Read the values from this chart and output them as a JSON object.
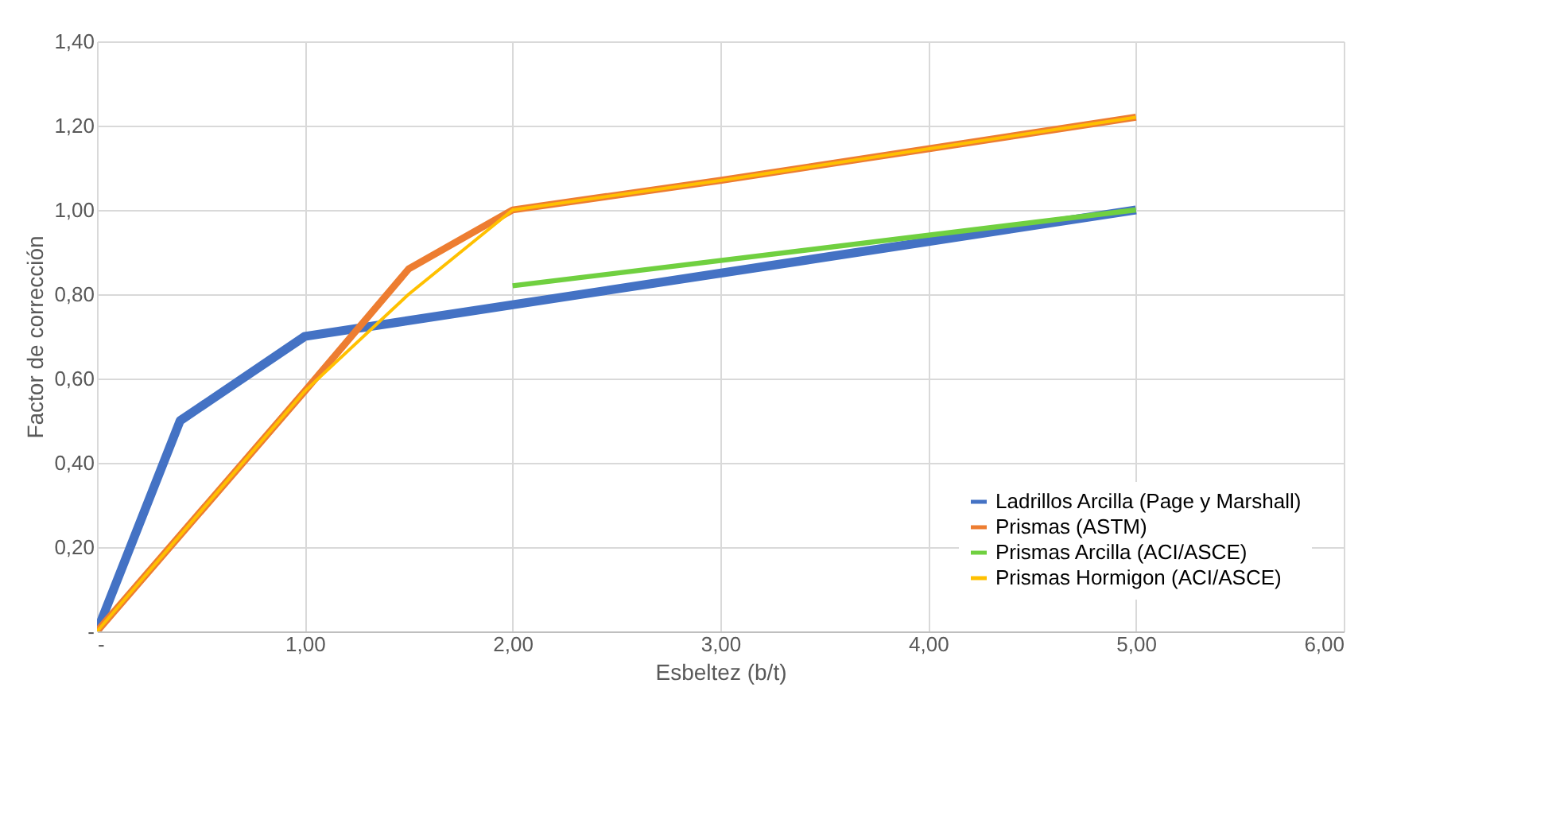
{
  "chart_data": {
    "type": "line",
    "xlabel": "Esbeltez (b/t)",
    "ylabel": "Factor de corrección",
    "xlim": [
      0,
      6
    ],
    "ylim": [
      0,
      1.4
    ],
    "xticks": [
      {
        "value": 0,
        "label": "-"
      },
      {
        "value": 1,
        "label": "1,00"
      },
      {
        "value": 2,
        "label": "2,00"
      },
      {
        "value": 3,
        "label": "3,00"
      },
      {
        "value": 4,
        "label": "4,00"
      },
      {
        "value": 5,
        "label": "5,00"
      },
      {
        "value": 6,
        "label": "6,00"
      }
    ],
    "yticks": [
      {
        "value": 0,
        "label": "-"
      },
      {
        "value": 0.2,
        "label": "0,20"
      },
      {
        "value": 0.4,
        "label": "0,40"
      },
      {
        "value": 0.6,
        "label": "0,60"
      },
      {
        "value": 0.8,
        "label": "0,80"
      },
      {
        "value": 1.0,
        "label": "1,00"
      },
      {
        "value": 1.2,
        "label": "1,20"
      },
      {
        "value": 1.4,
        "label": "1,40"
      }
    ],
    "grid": true,
    "legend": "bottom right",
    "marker": "none",
    "line_style": "solid",
    "series": [
      {
        "name": "Ladrillos Arcilla (Page y Marshall)",
        "color": "#4472c4",
        "x": [
          0,
          0.4,
          1,
          5
        ],
        "values": [
          0,
          0.5,
          0.7,
          1.0
        ]
      },
      {
        "name": "Prismas (ASTM)",
        "color": "#ed7d31",
        "x": [
          0,
          1,
          1.5,
          2,
          3,
          5
        ],
        "values": [
          0,
          0.57,
          0.86,
          1.0,
          1.07,
          1.22
        ]
      },
      {
        "name": "Prismas Arcilla (ACI/ASCE)",
        "color": "#70d040",
        "x": [
          2,
          5
        ],
        "values": [
          0.82,
          1.0
        ]
      },
      {
        "name": "Prismas Hormigon (ACI/ASCE)",
        "color": "#ffc000",
        "x": [
          0,
          1,
          1.5,
          2,
          3,
          5
        ],
        "values": [
          0,
          0.57,
          0.8,
          1.0,
          1.07,
          1.22
        ]
      }
    ]
  }
}
